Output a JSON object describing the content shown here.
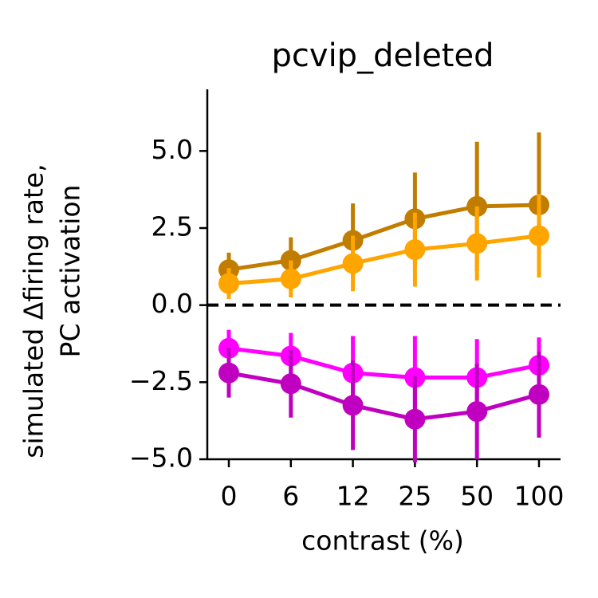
{
  "chart_data": {
    "type": "line",
    "title": "pcvip_deleted",
    "xlabel": "contrast (%)",
    "ylabel": [
      "simulated Δfiring rate,",
      "PC activation"
    ],
    "categories": [
      "0",
      "6",
      "12",
      "25",
      "50",
      "100"
    ],
    "ylim": [
      -5,
      7
    ],
    "yticks": [
      {
        "value": -5,
        "label": "−5.0"
      },
      {
        "value": -2.5,
        "label": "−2.5"
      },
      {
        "value": 0,
        "label": "0.0"
      },
      2.5,
      {
        "value": 5,
        "label": "5.0"
      }
    ],
    "hline": 0,
    "series": [
      {
        "color": "#c17d00",
        "values": [
          1.15,
          1.45,
          2.1,
          2.8,
          3.2,
          3.25
        ],
        "errors": [
          0.55,
          0.75,
          1.2,
          1.5,
          2.1,
          2.35
        ]
      },
      {
        "color": "#ffa500",
        "values": [
          0.7,
          0.85,
          1.35,
          1.8,
          2.0,
          2.25
        ],
        "errors": [
          0.5,
          0.6,
          0.9,
          1.2,
          1.2,
          1.35
        ]
      },
      {
        "color": "#ff00ff",
        "values": [
          -1.4,
          -1.65,
          -2.2,
          -2.35,
          -2.35,
          -1.95
        ],
        "errors": [
          0.6,
          0.75,
          1.2,
          1.35,
          1.25,
          0.9
        ]
      },
      {
        "color": "#c000c0",
        "values": [
          -2.2,
          -2.55,
          -3.25,
          -3.7,
          -3.45,
          -2.9
        ],
        "errors": [
          0.8,
          1.1,
          1.45,
          1.4,
          1.55,
          1.4
        ]
      }
    ]
  }
}
